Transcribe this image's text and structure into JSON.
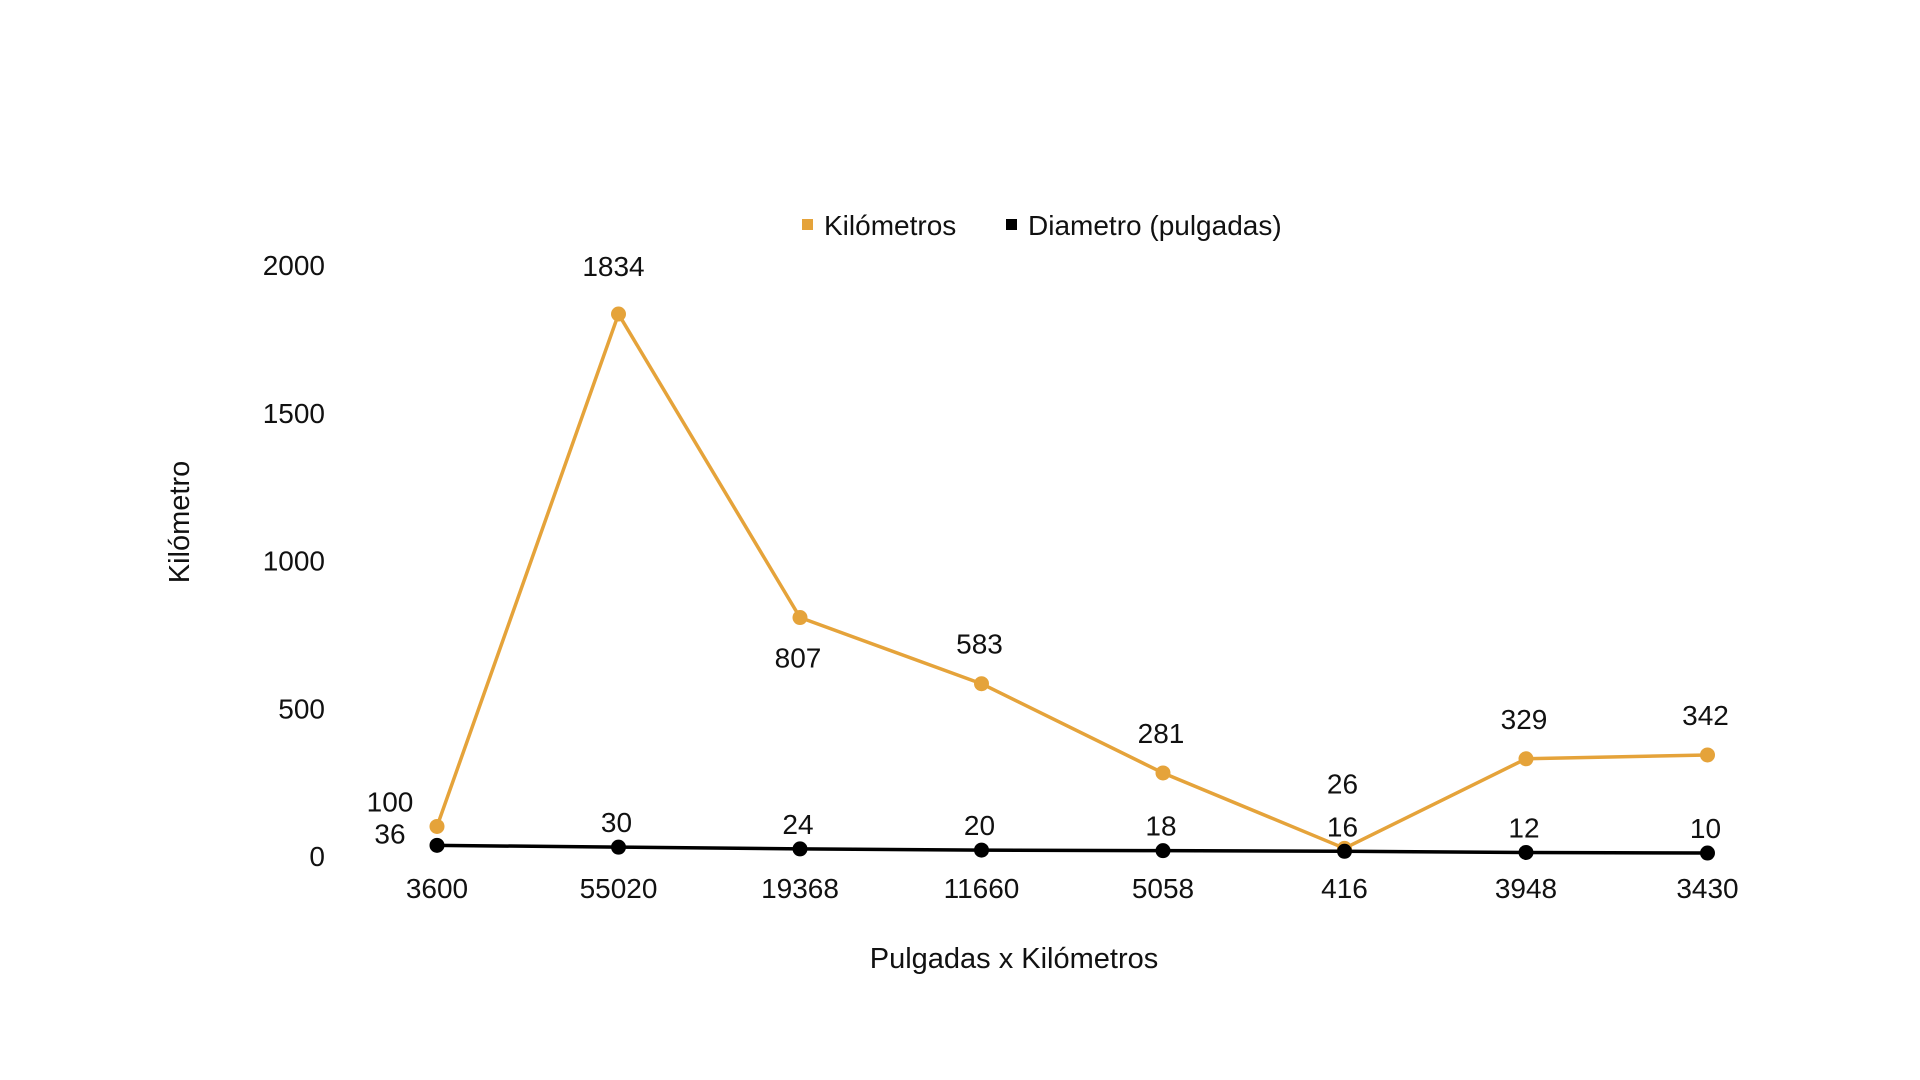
{
  "chart_data": {
    "type": "line",
    "title": "",
    "xlabel": "Pulgadas x Kilómetros",
    "ylabel": "Kilómetro",
    "categories": [
      "3600",
      "55020",
      "19368",
      "11660",
      "5058",
      "416",
      "3948",
      "3430"
    ],
    "ylim": [
      0,
      2000
    ],
    "yticks": [
      "0",
      "500",
      "1000",
      "1500",
      "2000"
    ],
    "ytick_values": [
      0,
      500,
      1000,
      1500,
      2000
    ],
    "grid": false,
    "legend_position": "top",
    "series": [
      {
        "name": "Kilómetros",
        "color": "#E5A33A",
        "values": [
          100,
          1834,
          807,
          583,
          281,
          26,
          329,
          342
        ],
        "labels": [
          "100",
          "1834",
          "807",
          "583",
          "281",
          "26",
          "329",
          "342"
        ]
      },
      {
        "name": "Diametro (pulgadas)",
        "color": "#000000",
        "values": [
          36,
          30,
          24,
          20,
          18,
          16,
          12,
          10
        ],
        "labels": [
          "36",
          "30",
          "24",
          "20",
          "18",
          "16",
          "12",
          "10"
        ]
      }
    ]
  }
}
